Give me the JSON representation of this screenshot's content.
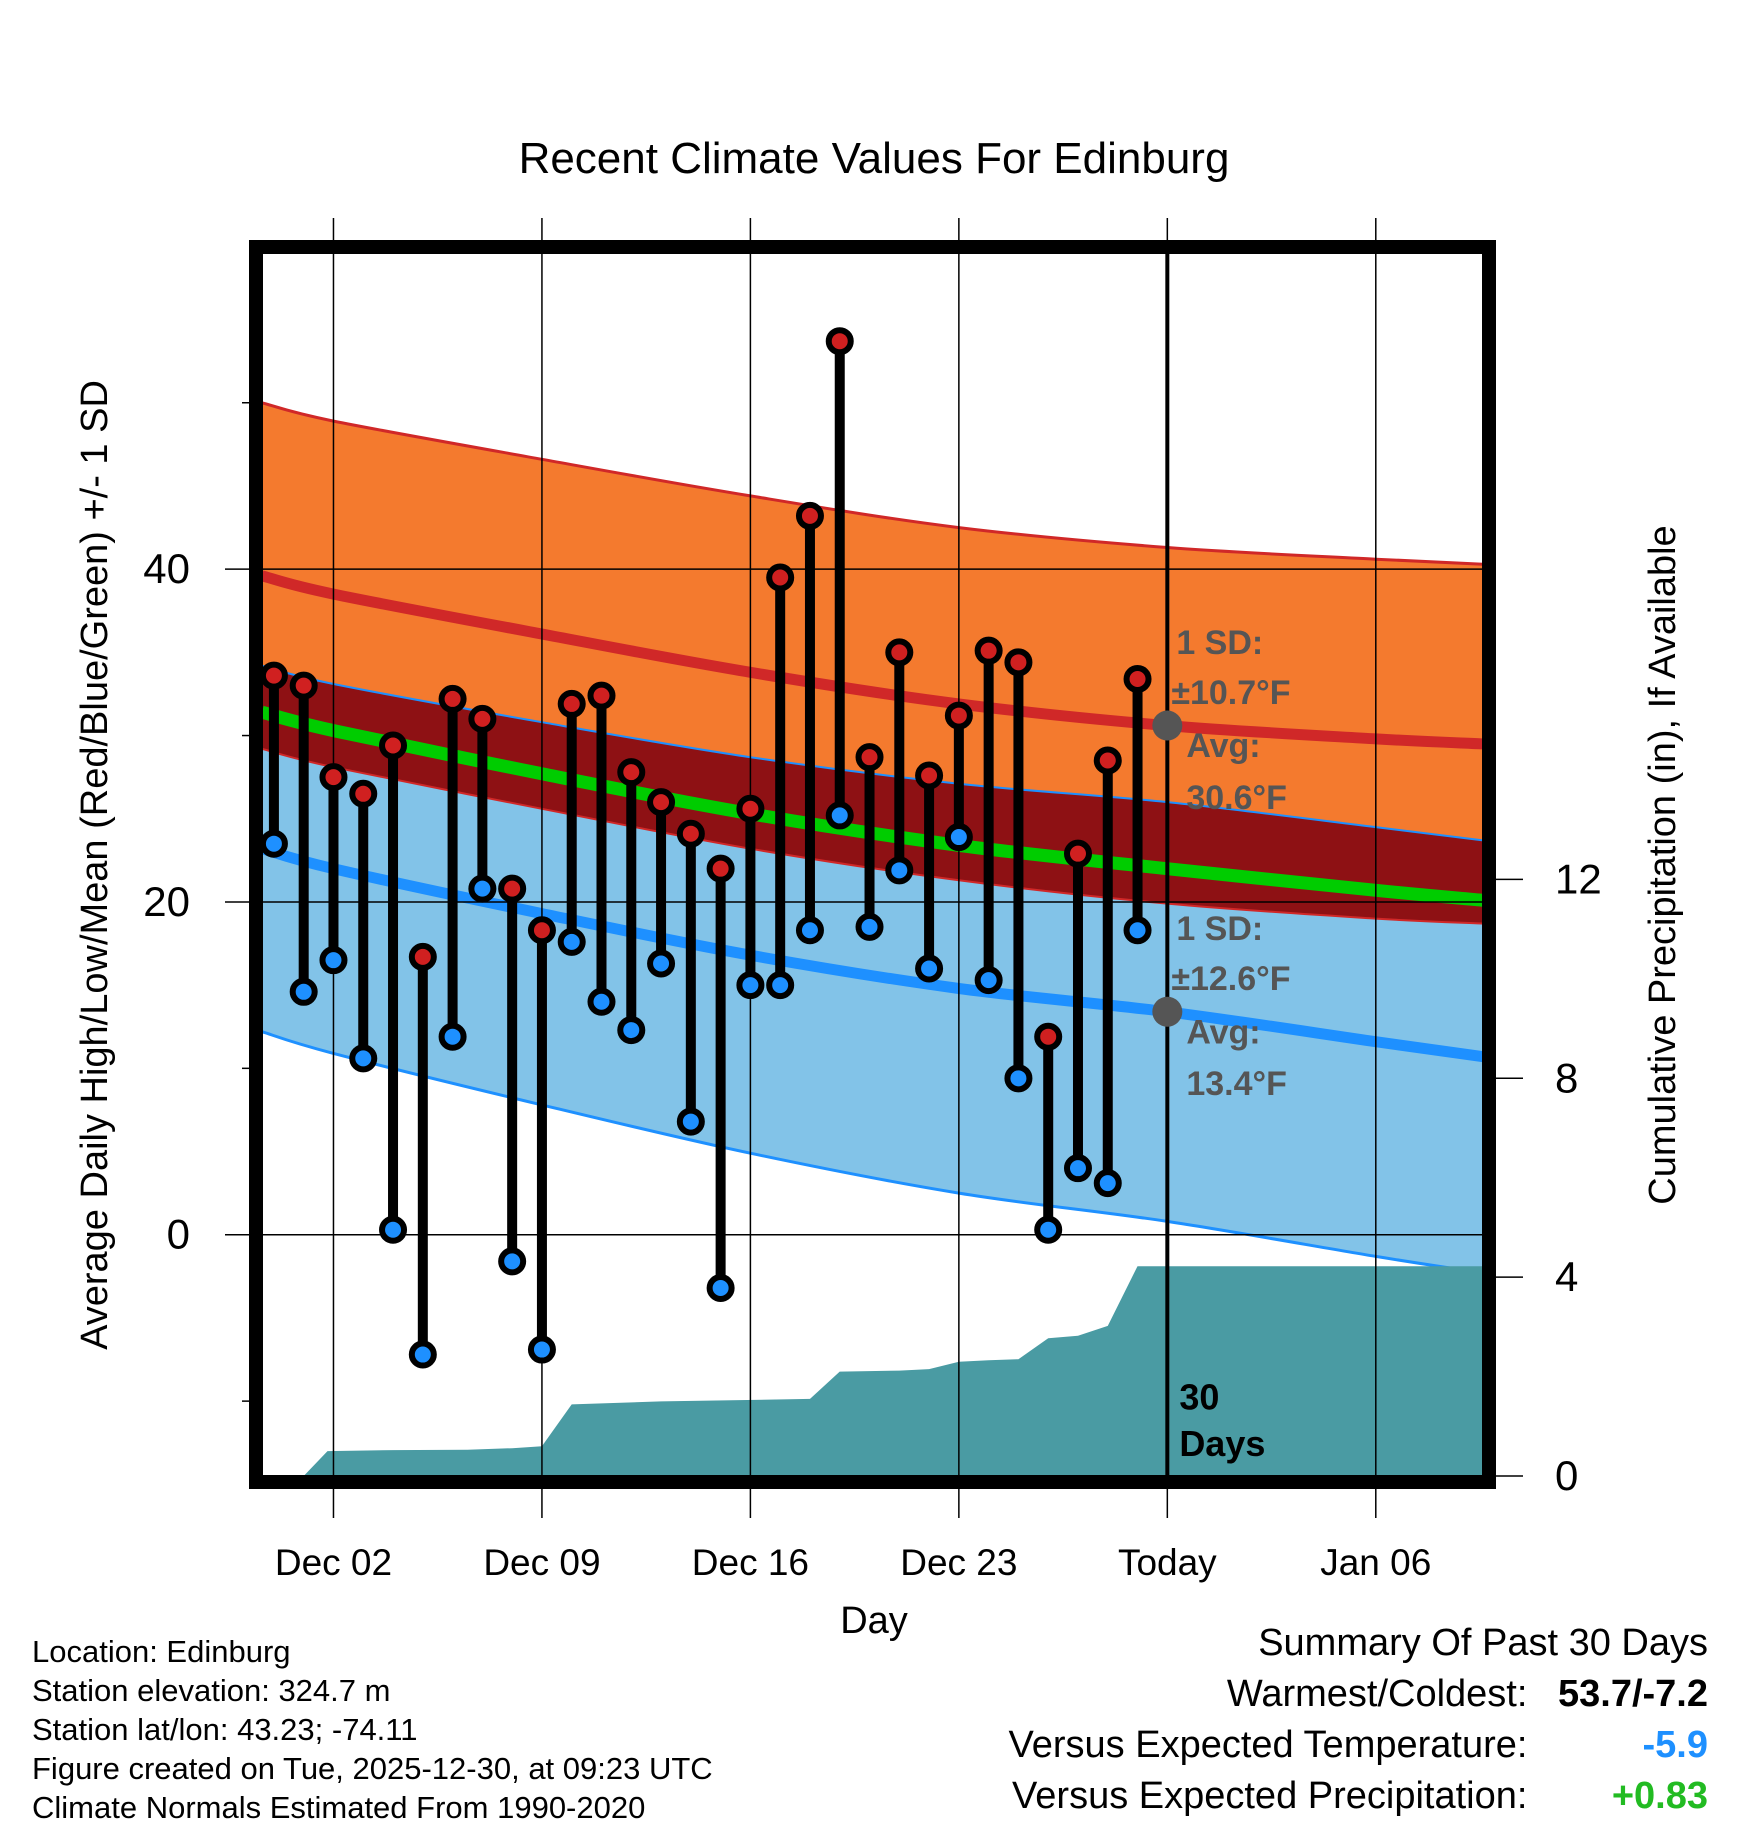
{
  "chart_data": {
    "type": "line",
    "title": "Recent Climate Values For Edinburg",
    "xlabel": "Day",
    "ylabel": "Average Daily High/Low/Mean (Red/Blue/Green) +/- 1 SD",
    "y2label": "Cumulative Precipitation (in), If Available",
    "xlim": [
      -2.4,
      38.6
    ],
    "ylim": [
      -14.5,
      59
    ],
    "y2lim": [
      0,
      24.6
    ],
    "x_ticks": [
      {
        "x": 0,
        "label": "Dec 02"
      },
      {
        "x": 7,
        "label": "Dec 09"
      },
      {
        "x": 14,
        "label": "Dec 16"
      },
      {
        "x": 21,
        "label": "Dec 23"
      },
      {
        "x": 28,
        "label": "Today"
      },
      {
        "x": 35,
        "label": "Jan 06"
      }
    ],
    "y_ticks": [
      {
        "y": 0,
        "label": "0"
      },
      {
        "y": 20,
        "label": "20"
      },
      {
        "y": 40,
        "label": "40"
      }
    ],
    "y_minor_ticks": [
      -10,
      10,
      30,
      50
    ],
    "y2_ticks": [
      {
        "y": 0,
        "label": "0"
      },
      {
        "y": 4,
        "label": "4"
      },
      {
        "y": 8,
        "label": "8"
      },
      {
        "y": 12,
        "label": "12"
      }
    ],
    "normals": {
      "x": [
        -2.4,
        0,
        7,
        14,
        21,
        28,
        35,
        38.6
      ],
      "high_mean": [
        39.6,
        38.5,
        36.1,
        33.8,
        31.9,
        30.6,
        29.8,
        29.5
      ],
      "high_sd": [
        10.4,
        10.4,
        10.5,
        10.6,
        10.6,
        10.7,
        10.8,
        10.8
      ],
      "low_mean": [
        23.2,
        22.0,
        19.3,
        16.8,
        14.8,
        13.4,
        11.6,
        10.7
      ],
      "low_sd": [
        11.0,
        11.1,
        11.5,
        11.9,
        12.3,
        12.6,
        12.9,
        13.0
      ],
      "mean": [
        31.4,
        30.3,
        27.7,
        25.3,
        23.4,
        22.0,
        20.7,
        20.1
      ]
    },
    "series": [
      {
        "name": "Daily High",
        "color": "#d02020",
        "x": [
          -2,
          -1,
          0,
          1,
          2,
          3,
          4,
          5,
          6,
          7,
          8,
          9,
          10,
          11,
          12,
          13,
          14,
          15,
          16,
          17,
          18,
          19,
          20,
          21,
          22,
          23,
          24,
          25,
          26,
          27
        ],
        "values": [
          33.6,
          33.0,
          27.5,
          26.5,
          29.4,
          16.7,
          32.2,
          31.0,
          20.8,
          18.3,
          31.9,
          32.4,
          27.8,
          26.0,
          24.1,
          22.0,
          25.6,
          39.5,
          43.2,
          53.7,
          28.7,
          35.0,
          27.6,
          31.2,
          35.1,
          34.4,
          11.9,
          22.9,
          28.5,
          33.4
        ]
      },
      {
        "name": "Daily Low",
        "color": "#1e90ff",
        "x": [
          -2,
          -1,
          0,
          1,
          2,
          3,
          4,
          5,
          6,
          7,
          8,
          9,
          10,
          11,
          12,
          13,
          14,
          15,
          16,
          17,
          18,
          19,
          20,
          21,
          22,
          23,
          24,
          25,
          26,
          27
        ],
        "values": [
          23.5,
          14.6,
          16.5,
          10.6,
          0.3,
          -7.2,
          11.9,
          20.8,
          -1.6,
          -6.9,
          17.6,
          14.0,
          12.3,
          16.3,
          6.8,
          -3.2,
          15.0,
          15.0,
          18.3,
          25.2,
          18.5,
          21.9,
          16.0,
          23.9,
          15.3,
          9.4,
          0.3,
          4.0,
          3.1,
          18.3
        ]
      },
      {
        "name": "Cumulative Precipitation",
        "color": "#4a9ba3",
        "x": [
          -2.4,
          -1.0,
          -0.2,
          2.0,
          4.5,
          6.0,
          7.0,
          8.0,
          11.0,
          16.0,
          17.0,
          19.0,
          20.0,
          21.0,
          22.0,
          23.0,
          24.0,
          25.0,
          26.0,
          27.0,
          38.6
        ],
        "values": [
          0,
          0,
          0.5,
          0.52,
          0.53,
          0.56,
          0.6,
          1.44,
          1.5,
          1.55,
          2.1,
          2.12,
          2.15,
          2.3,
          2.33,
          2.35,
          2.77,
          2.82,
          3.02,
          4.22,
          4.22
        ]
      }
    ],
    "today_x": 28,
    "annotations": {
      "high_sd_label": "1 SD:",
      "high_sd_value": "±10.7°F",
      "high_avg_label": "Avg:",
      "high_avg_value": "30.6°F",
      "low_sd_label": "1 SD:",
      "low_sd_value": "±12.6°F",
      "low_avg_label": "Avg:",
      "low_avg_value": "13.4°F",
      "days_number": "30",
      "days_label": "Days"
    },
    "legend": "none",
    "grid": true
  },
  "info": {
    "location": "Location: Edinburg",
    "elevation": "Station elevation: 324.7 m",
    "latlon": "Station lat/lon: 43.23; -74.11",
    "created": "Figure created on Tue, 2025-12-30, at 09:23 UTC",
    "normals": "Climate Normals Estimated From 1990-2020"
  },
  "summary": {
    "heading": "Summary Of Past 30 Days",
    "warm_cold_label": "Warmest/Coldest:",
    "warm_cold_value": "53.7/-7.2",
    "temp_label": "Versus Expected Temperature:",
    "temp_value": "-5.9",
    "temp_color": "#1e90ff",
    "precip_label": "Versus Expected Precipitation:",
    "precip_value": "+0.83",
    "precip_color": "#22bb22"
  },
  "colors": {
    "high_band": "#f47a2e",
    "overlap_band": "#8e1114",
    "low_band": "#82c3e8",
    "mean_line": "#00cc00",
    "high_line": "#d02828",
    "low_line": "#1e90ff",
    "precip": "#4a9ba3",
    "annotation": "#555555"
  }
}
